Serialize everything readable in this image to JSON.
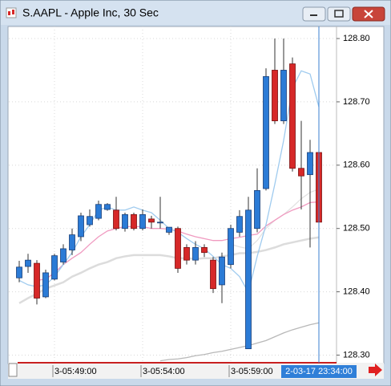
{
  "window": {
    "title": "S.AAPL - Apple Inc, 30 Sec"
  },
  "chart_data": {
    "type": "candlestick",
    "categories": [
      null,
      null,
      null,
      null,
      "3-05:49:00",
      null,
      null,
      null,
      null,
      null,
      null,
      null,
      null,
      null,
      "3-05:54:00",
      null,
      null,
      null,
      null,
      null,
      null,
      null,
      null,
      null,
      "3-05:59:00",
      null,
      null,
      null,
      null,
      null,
      null,
      null,
      null,
      null,
      null
    ],
    "cursor_label": "2-03-17 23:34:00",
    "open": [
      128.422,
      128.44,
      128.445,
      128.392,
      128.42,
      128.447,
      128.466,
      128.487,
      128.506,
      128.516,
      128.53,
      128.529,
      128.5,
      128.522,
      128.5,
      128.515,
      128.51,
      128.494,
      128.5,
      128.47,
      128.45,
      128.47,
      128.45,
      128.411,
      128.443,
      128.494,
      128.31,
      128.5,
      128.563,
      128.75,
      128.67,
      128.76,
      128.595,
      128.585,
      128.62
    ],
    "high": [
      128.449,
      128.46,
      128.45,
      128.435,
      128.46,
      128.475,
      128.5,
      128.525,
      128.53,
      128.544,
      128.54,
      128.55,
      128.525,
      128.525,
      128.53,
      128.52,
      128.55,
      128.5,
      128.503,
      128.475,
      128.48,
      128.475,
      128.455,
      128.462,
      128.506,
      128.529,
      128.55,
      128.595,
      128.753,
      128.8,
      128.8,
      128.77,
      128.67,
      128.64,
      128.633
    ],
    "low": [
      128.415,
      128.43,
      128.38,
      128.39,
      128.418,
      128.443,
      128.458,
      128.48,
      128.503,
      128.513,
      128.528,
      128.497,
      128.495,
      128.497,
      128.497,
      128.5,
      128.5,
      128.49,
      128.43,
      128.443,
      128.443,
      128.455,
      128.398,
      128.382,
      128.437,
      128.487,
      128.31,
      128.494,
      128.56,
      128.665,
      128.665,
      128.59,
      128.53,
      128.47,
      128.506
    ],
    "close": [
      128.439,
      128.45,
      128.39,
      128.43,
      128.457,
      128.468,
      128.49,
      128.52,
      128.519,
      128.538,
      128.538,
      128.5,
      128.522,
      128.5,
      128.522,
      128.51,
      128.51,
      128.502,
      128.437,
      128.45,
      128.47,
      128.462,
      128.405,
      128.455,
      128.5,
      128.519,
      128.529,
      128.56,
      128.74,
      128.67,
      128.75,
      128.595,
      128.583,
      128.62,
      128.51
    ],
    "up_color": "#2b7bd6",
    "down_color": "#d62828",
    "indicators": [
      {
        "color": "#dcdcdc",
        "values": [
          128.382,
          128.39,
          128.397,
          128.405,
          128.41,
          128.415,
          128.424,
          128.43,
          128.437,
          128.443,
          128.447,
          128.453,
          128.456,
          128.458,
          128.458,
          128.458,
          128.458,
          128.456,
          128.453,
          128.453,
          128.452,
          128.453,
          128.453,
          128.456,
          128.458,
          128.461,
          128.461,
          128.463,
          128.466,
          128.47,
          128.475,
          128.478,
          128.481,
          128.484,
          128.486
        ]
      },
      {
        "color": "#e2e2e2",
        "values": [
          null,
          null,
          null,
          null,
          null,
          null,
          null,
          null,
          null,
          null,
          null,
          null,
          null,
          null,
          null,
          null,
          null,
          null,
          null,
          null,
          null,
          null,
          null,
          null,
          128.475,
          128.471,
          128.468,
          128.481,
          128.5,
          128.513,
          128.522,
          128.534,
          128.547,
          128.557,
          128.562
        ]
      },
      {
        "color": "#b8b8b8",
        "values": [
          null,
          null,
          null,
          null,
          null,
          null,
          null,
          null,
          null,
          null,
          null,
          null,
          null,
          null,
          null,
          null,
          128.291,
          128.293,
          128.294,
          128.296,
          128.299,
          128.301,
          128.304,
          128.306,
          128.309,
          128.312,
          128.315,
          128.319,
          128.323,
          128.329,
          128.335,
          128.34,
          128.344,
          128.348,
          128.351
        ]
      },
      {
        "color": "#f09ac0",
        "values": [
          null,
          null,
          128.418,
          128.42,
          128.43,
          128.443,
          128.453,
          128.462,
          128.475,
          128.487,
          128.496,
          128.5,
          128.503,
          128.503,
          128.503,
          128.5,
          128.5,
          128.499,
          128.496,
          128.491,
          128.487,
          128.484,
          128.481,
          128.481,
          128.484,
          128.486,
          128.489,
          128.491,
          128.504,
          128.513,
          128.522,
          128.529,
          128.534,
          128.541,
          128.542
        ]
      },
      {
        "color": "#9fcbef",
        "values": [
          128.418,
          128.411,
          128.408,
          128.411,
          128.424,
          128.443,
          128.462,
          128.487,
          128.506,
          128.529,
          128.534,
          128.529,
          128.529,
          128.534,
          128.529,
          128.525,
          128.513,
          128.5,
          128.494,
          128.484,
          128.475,
          128.468,
          128.456,
          128.443,
          128.437,
          128.424,
          128.399,
          128.456,
          128.506,
          128.57,
          128.639,
          128.722,
          128.749,
          128.744,
          128.692
        ]
      }
    ],
    "ylim": [
      128.2905,
      128.8165
    ],
    "yticks": [
      {
        "value": 128.3,
        "label": "128.30"
      },
      {
        "value": 128.4,
        "label": "128.40"
      },
      {
        "value": 128.5,
        "label": "128.50"
      },
      {
        "value": 128.6,
        "label": "128.60"
      },
      {
        "value": 128.7,
        "label": "128.70"
      },
      {
        "value": 128.8,
        "label": "128.80"
      }
    ],
    "grid": true
  }
}
